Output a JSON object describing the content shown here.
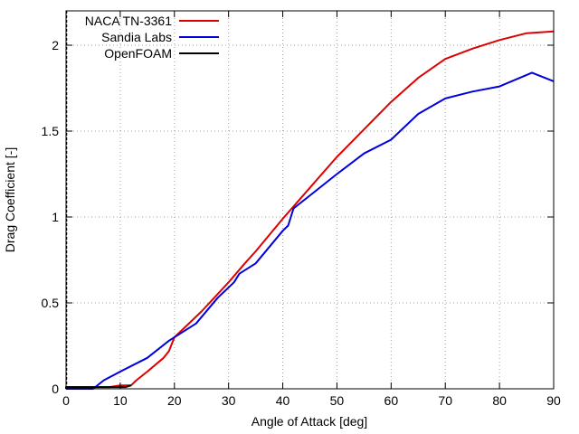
{
  "chart_data": {
    "type": "line",
    "xlabel": "Angle of Attack [deg]",
    "ylabel": "Drag Coefficient [-]",
    "xlim": [
      0,
      90
    ],
    "ylim": [
      0,
      2.2
    ],
    "xticks": [
      0,
      10,
      20,
      30,
      40,
      50,
      60,
      70,
      80,
      90
    ],
    "xtick_labels": [
      "0",
      "10",
      "20",
      "30",
      "40",
      "50",
      "60",
      "70",
      "80",
      "90"
    ],
    "yticks": [
      0,
      0.5,
      1,
      1.5,
      2
    ],
    "ytick_labels": [
      "0",
      "0.5",
      "1",
      "1.5",
      "2"
    ],
    "grid": true,
    "legend_position": "top-left",
    "series": [
      {
        "name": "NACA TN-3361",
        "color": "#dd0000",
        "points": [
          [
            0,
            0.01
          ],
          [
            4,
            0.01
          ],
          [
            8,
            0.01
          ],
          [
            10,
            0.02
          ],
          [
            12,
            0.02
          ],
          [
            13,
            0.05
          ],
          [
            15,
            0.1
          ],
          [
            18,
            0.18
          ],
          [
            19,
            0.22
          ],
          [
            20,
            0.3
          ],
          [
            22,
            0.36
          ],
          [
            25,
            0.45
          ],
          [
            30,
            0.62
          ],
          [
            33,
            0.73
          ],
          [
            35,
            0.8
          ],
          [
            40,
            0.99
          ],
          [
            45,
            1.17
          ],
          [
            50,
            1.35
          ],
          [
            55,
            1.51
          ],
          [
            60,
            1.67
          ],
          [
            65,
            1.81
          ],
          [
            70,
            1.92
          ],
          [
            75,
            1.98
          ],
          [
            80,
            2.03
          ],
          [
            85,
            2.07
          ],
          [
            90,
            2.08
          ]
        ]
      },
      {
        "name": "Sandia Labs",
        "color": "#0000dd",
        "points": [
          [
            0,
            0.0
          ],
          [
            5,
            0.0
          ],
          [
            7,
            0.05
          ],
          [
            10,
            0.1
          ],
          [
            15,
            0.18
          ],
          [
            19,
            0.28
          ],
          [
            21,
            0.32
          ],
          [
            24,
            0.38
          ],
          [
            28,
            0.53
          ],
          [
            31,
            0.62
          ],
          [
            32,
            0.67
          ],
          [
            35,
            0.73
          ],
          [
            40,
            0.92
          ],
          [
            41,
            0.95
          ],
          [
            42,
            1.05
          ],
          [
            44,
            1.1
          ],
          [
            46,
            1.15
          ],
          [
            50,
            1.25
          ],
          [
            55,
            1.37
          ],
          [
            60,
            1.45
          ],
          [
            65,
            1.6
          ],
          [
            70,
            1.69
          ],
          [
            75,
            1.73
          ],
          [
            80,
            1.76
          ],
          [
            86,
            1.84
          ],
          [
            90,
            1.79
          ]
        ]
      },
      {
        "name": "OpenFOAM",
        "color": "#000000",
        "points": [
          [
            0,
            0.0
          ],
          [
            0,
            0.01
          ],
          [
            2,
            0.01
          ],
          [
            4,
            0.01
          ],
          [
            6,
            0.01
          ],
          [
            8,
            0.01
          ],
          [
            10,
            0.01
          ],
          [
            11,
            0.01
          ],
          [
            12,
            0.02
          ]
        ]
      }
    ]
  }
}
